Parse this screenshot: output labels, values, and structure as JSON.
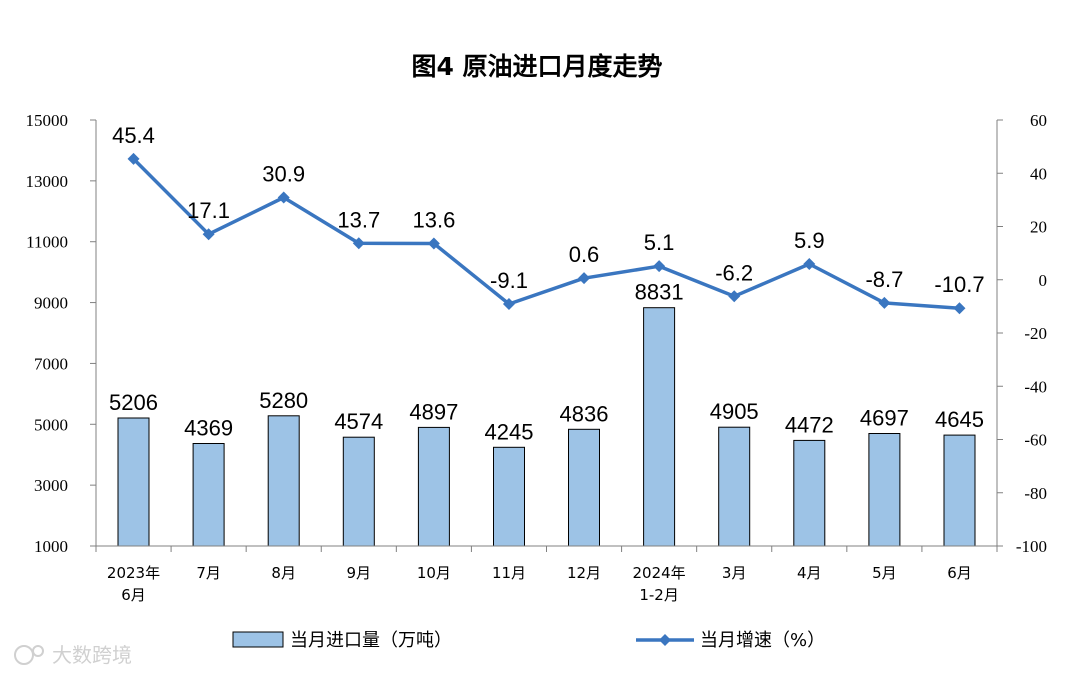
{
  "chart_data": {
    "type": "bar+line",
    "title": "图4  原油进口月度走势",
    "categories": [
      [
        "2023年",
        "6月"
      ],
      [
        "7月"
      ],
      [
        "8月"
      ],
      [
        "9月"
      ],
      [
        "10月"
      ],
      [
        "11月"
      ],
      [
        "12月"
      ],
      [
        "2024年",
        "1-2月"
      ],
      [
        "3月"
      ],
      [
        "4月"
      ],
      [
        "5月"
      ],
      [
        "6月"
      ]
    ],
    "series": [
      {
        "name": "当月进口量（万吨）",
        "type": "bar",
        "axis": "left",
        "color": "#9dc3e6",
        "values": [
          5206,
          4369,
          5280,
          4574,
          4897,
          4245,
          4836,
          8831,
          4905,
          4472,
          4697,
          4645
        ],
        "labels": [
          "5206",
          "4369",
          "5280",
          "4574",
          "4897",
          "4245",
          "4836",
          "8831",
          "4905",
          "4472",
          "4697",
          "4645"
        ]
      },
      {
        "name": "当月增速（%）",
        "type": "line",
        "axis": "right",
        "color": "#3a76c0",
        "values": [
          45.4,
          17.1,
          30.9,
          13.7,
          13.6,
          -9.1,
          0.6,
          5.1,
          -6.2,
          5.9,
          -8.7,
          -10.7
        ],
        "labels": [
          "45.4",
          "17.1",
          "30.9",
          "13.7",
          "13.6",
          "-9.1",
          "0.6",
          "5.1",
          "-6.2",
          "5.9",
          "-8.7",
          "-10.7"
        ]
      }
    ],
    "y_left": {
      "ylim": [
        1000,
        15000
      ],
      "ticks": [
        "1000",
        "3000",
        "5000",
        "7000",
        "9000",
        "11000",
        "13000",
        "15000"
      ]
    },
    "y_right": {
      "ylim": [
        -100,
        60
      ],
      "ticks": [
        "-100",
        "-80",
        "-60",
        "-40",
        "-20",
        "0",
        "20",
        "40",
        "60"
      ]
    },
    "grid": false,
    "legend_position": "bottom"
  },
  "watermark": "大数跨境"
}
